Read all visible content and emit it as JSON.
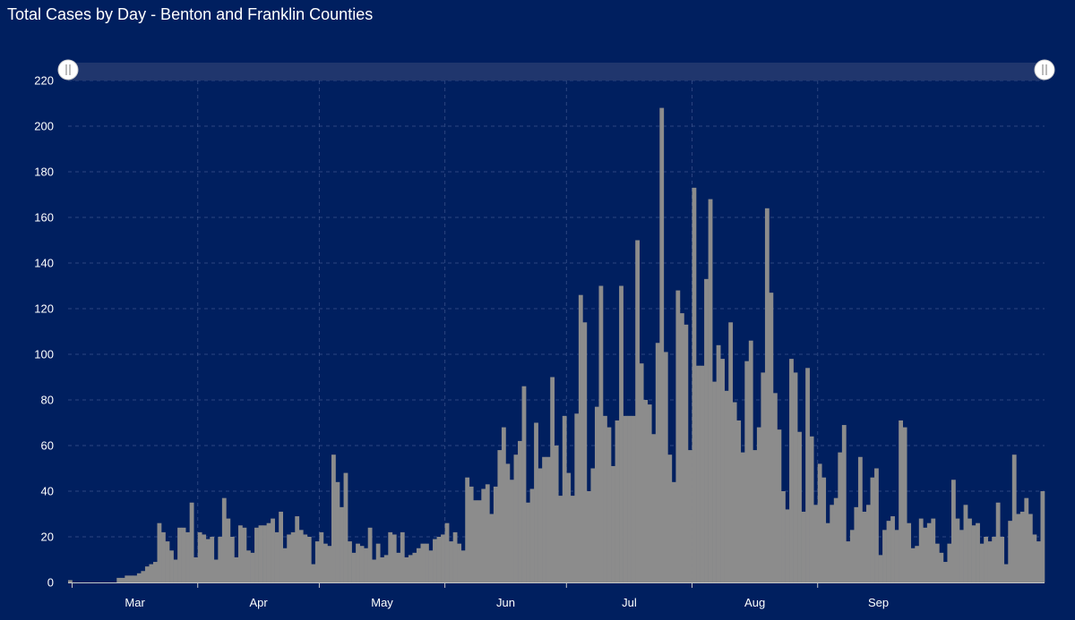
{
  "page": {
    "background": "#001f5f"
  },
  "chart_data": {
    "type": "bar",
    "title": "Total Cases by Day - Benton and Franklin Counties",
    "xlabel": "",
    "ylabel": "",
    "ylim": [
      0,
      220
    ],
    "y_ticks": [
      0,
      20,
      40,
      60,
      80,
      100,
      120,
      140,
      160,
      180,
      200,
      220
    ],
    "x_tick_labels": [
      "Mar",
      "Apr",
      "May",
      "Jun",
      "Jul",
      "Aug",
      "Sep"
    ],
    "start_date": "2020-02-29",
    "bar_color": "#8c8c8c",
    "grid": true,
    "range_slider": true,
    "values": [
      1,
      0,
      0,
      0,
      0,
      0,
      0,
      0,
      0,
      0,
      0,
      0,
      2,
      2,
      3,
      3,
      3,
      4,
      5,
      7,
      8,
      9,
      26,
      22,
      18,
      14,
      10,
      24,
      24,
      22,
      35,
      11,
      22,
      21,
      19,
      20,
      10,
      20,
      37,
      28,
      20,
      11,
      25,
      24,
      14,
      13,
      24,
      25,
      25,
      26,
      28,
      22,
      31,
      15,
      21,
      22,
      29,
      23,
      21,
      20,
      8,
      18,
      22,
      17,
      16,
      56,
      44,
      33,
      48,
      18,
      13,
      17,
      16,
      15,
      24,
      10,
      17,
      11,
      12,
      22,
      21,
      13,
      22,
      11,
      12,
      13,
      15,
      17,
      17,
      14,
      19,
      20,
      21,
      26,
      18,
      22,
      17,
      14,
      46,
      42,
      36,
      36,
      41,
      43,
      30,
      42,
      58,
      68,
      52,
      45,
      56,
      62,
      86,
      35,
      41,
      70,
      50,
      55,
      55,
      90,
      60,
      38,
      73,
      48,
      38,
      74,
      126,
      114,
      40,
      50,
      77,
      130,
      73,
      68,
      51,
      71,
      130,
      73,
      73,
      73,
      150,
      96,
      80,
      78,
      65,
      105,
      208,
      101,
      56,
      44,
      128,
      118,
      113,
      58,
      173,
      95,
      95,
      133,
      168,
      88,
      104,
      98,
      84,
      114,
      79,
      71,
      57,
      97,
      106,
      58,
      68,
      92,
      164,
      127,
      83,
      67,
      40,
      32,
      98,
      92,
      66,
      31,
      94,
      64,
      34,
      52,
      46,
      26,
      34,
      37,
      57,
      69,
      18,
      23,
      33,
      55,
      31,
      34,
      46,
      50,
      12,
      23,
      27,
      29,
      23,
      71,
      68,
      26,
      15,
      16,
      28,
      24,
      26,
      28,
      17,
      13,
      9,
      17,
      45,
      28,
      23,
      34,
      28,
      25,
      26,
      17,
      20,
      18,
      20,
      35,
      20,
      8,
      27,
      56,
      30,
      31,
      37,
      30,
      21,
      18,
      40
    ]
  }
}
